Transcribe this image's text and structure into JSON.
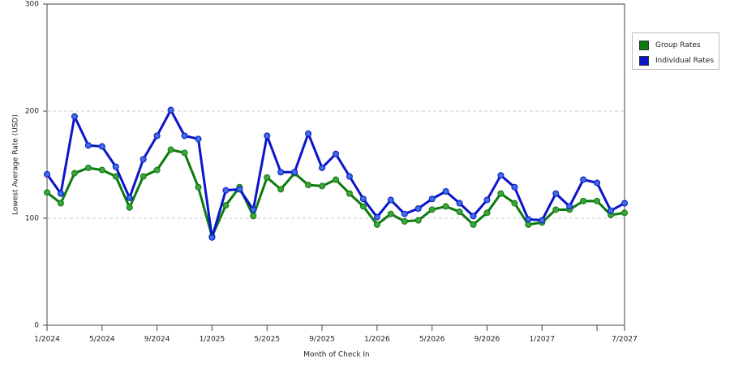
{
  "chart_data": {
    "type": "line",
    "x_label": "Month of Check In",
    "y_label": "Lowest Average Rate (USD)",
    "categories": [
      "1/2024",
      null,
      null,
      null,
      "5/2024",
      null,
      null,
      null,
      "9/2024",
      null,
      null,
      null,
      "1/2025",
      null,
      null,
      null,
      "5/2025",
      null,
      null,
      null,
      "9/2025",
      null,
      null,
      null,
      "1/2026",
      null,
      null,
      null,
      "5/2026",
      null,
      null,
      null,
      "9/2026",
      null,
      null,
      null,
      "1/2027",
      null,
      null,
      null,
      null,
      null,
      "7/2027"
    ],
    "series": [
      {
        "name": "Group Rates",
        "color": "#0c7a0c",
        "marker_color": "#3da33d",
        "values": [
          124,
          114,
          142,
          147,
          145,
          139,
          110,
          139,
          145,
          164,
          161,
          129,
          83,
          112,
          129,
          102,
          138,
          127,
          142,
          131,
          130,
          136,
          123,
          111,
          94,
          104,
          97,
          98,
          108,
          111,
          106,
          94,
          105,
          123,
          114,
          94,
          96,
          108,
          108,
          116,
          116,
          103,
          105
        ]
      },
      {
        "name": "Individual Rates",
        "color": "#0a14c8",
        "marker_color": "#3d6ee0",
        "values": [
          141,
          123,
          195,
          168,
          167,
          148,
          119,
          155,
          177,
          201,
          177,
          174,
          82,
          126,
          127,
          108,
          177,
          143,
          143,
          179,
          147,
          160,
          139,
          118,
          101,
          117,
          104,
          109,
          118,
          125,
          114,
          102,
          117,
          140,
          129,
          99,
          98,
          123,
          111,
          136,
          133,
          107,
          114
        ]
      }
    ],
    "ylim": [
      0,
      300
    ],
    "yticks": [
      0,
      100,
      200,
      300
    ],
    "grid": true,
    "legend": "right"
  }
}
